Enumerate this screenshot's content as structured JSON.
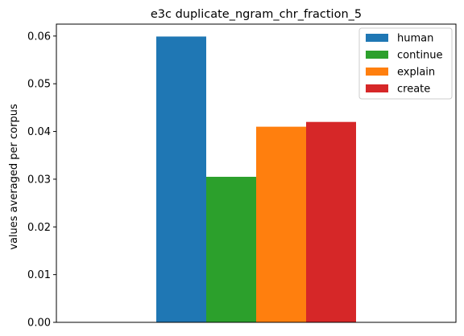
{
  "chart_data": {
    "type": "bar",
    "title": "e3c duplicate_ngram_chr_fraction_5",
    "xlabel": "",
    "ylabel": "values averaged per corpus",
    "ylim": [
      0,
      0.0625
    ],
    "yticks": [
      "0.00",
      "0.01",
      "0.02",
      "0.03",
      "0.04",
      "0.05",
      "0.06"
    ],
    "ytick_values": [
      0,
      0.01,
      0.02,
      0.03,
      0.04,
      0.05,
      0.06
    ],
    "grid": false,
    "legend_position": "top-right",
    "series": [
      {
        "name": "human",
        "values": [
          0.0599
        ],
        "color": "#1f77b4"
      },
      {
        "name": "continue",
        "values": [
          0.0305
        ],
        "color": "#2ca02c"
      },
      {
        "name": "explain",
        "values": [
          0.041
        ],
        "color": "#ff7f0e"
      },
      {
        "name": "create",
        "values": [
          0.042
        ],
        "color": "#d62728"
      }
    ]
  }
}
